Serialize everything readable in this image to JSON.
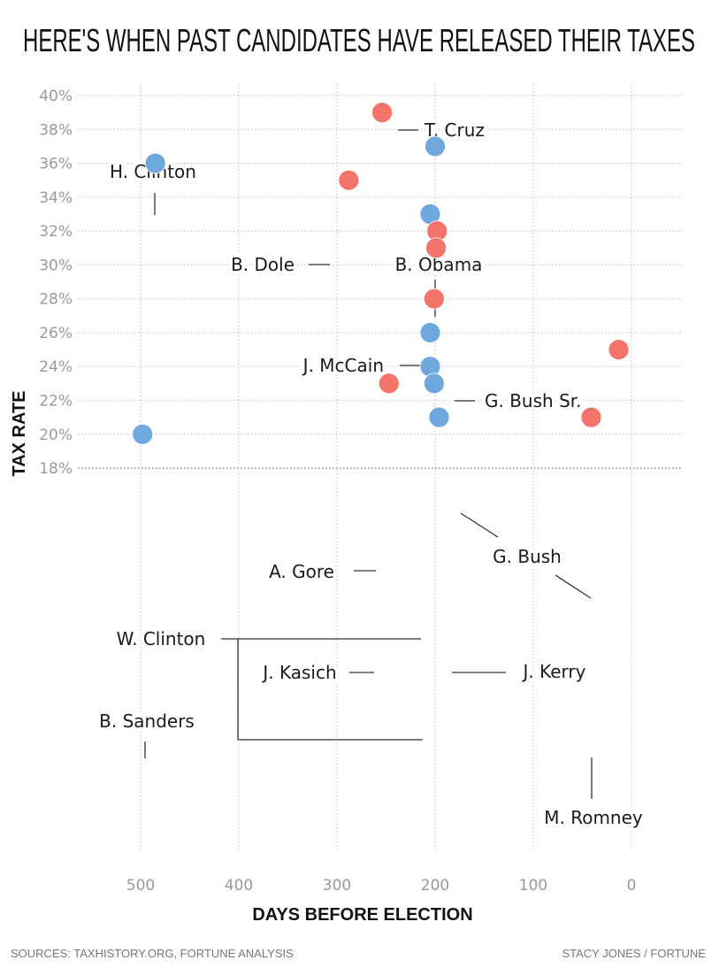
{
  "chart_data": {
    "type": "scatter",
    "title": "HERE'S WHEN PAST CANDIDATES HAVE RELEASED THEIR TAXES",
    "xlabel": "DAYS BEFORE ELECTION",
    "ylabel": "TAX RATE",
    "xlim": [
      568,
      -50
    ],
    "x_reversed": true,
    "ylim": [
      18,
      40
    ],
    "xticks": [
      500,
      400,
      300,
      200,
      100,
      0
    ],
    "xtick_labels": [
      "500",
      "400",
      "300",
      "200",
      "100",
      "0"
    ],
    "yticks": [
      40,
      38,
      36,
      34,
      32,
      30,
      28,
      26,
      24,
      22,
      20,
      18
    ],
    "ytick_labels": [
      "40%",
      "38%",
      "36%",
      "34%",
      "32%",
      "30%",
      "28%",
      "26%",
      "24%",
      "22%",
      "20%",
      "18%"
    ],
    "grid": true,
    "colors": {
      "blue": "#6fa8dc",
      "red": "#f4736a"
    },
    "points": [
      {
        "label": "T. Cruz",
        "x": 254,
        "y": 39,
        "color": "red"
      },
      {
        "label": "H. Clinton",
        "x": 485,
        "y": 36,
        "color": "blue"
      },
      {
        "label": "B. Obama",
        "x": 200,
        "y": 37,
        "color": "blue"
      },
      {
        "label": "B. Obama",
        "x": 205,
        "y": 33,
        "color": "blue"
      },
      {
        "label": "B. Dole",
        "x": 288,
        "y": 35,
        "color": "red"
      },
      {
        "label": "J. McCain",
        "x": 198,
        "y": 32,
        "color": "red"
      },
      {
        "label": "G. Bush Sr.",
        "x": 199,
        "y": 31,
        "color": "red"
      },
      {
        "label": "G. Bush",
        "x": 201,
        "y": 28,
        "color": "red"
      },
      {
        "label": "G. Bush",
        "x": 13,
        "y": 25,
        "color": "red"
      },
      {
        "label": "A. Gore",
        "x": 205,
        "y": 26,
        "color": "blue"
      },
      {
        "label": "W. Clinton",
        "x": 205,
        "y": 24,
        "color": "blue"
      },
      {
        "label": "W. Clinton",
        "x": 196,
        "y": 21,
        "color": "blue"
      },
      {
        "label": "J. Kasich",
        "x": 247,
        "y": 23,
        "color": "red"
      },
      {
        "label": "J. Kerry",
        "x": 201,
        "y": 23,
        "color": "blue"
      },
      {
        "label": "M. Romney",
        "x": 41,
        "y": 21,
        "color": "red"
      },
      {
        "label": "B. Sanders",
        "x": 498,
        "y": 20,
        "color": "blue"
      }
    ],
    "labels": [
      "H. Clinton",
      "T. Cruz",
      "B. Dole",
      "B. Obama",
      "J. McCain",
      "G. Bush Sr.",
      "G. Bush",
      "A. Gore",
      "W. Clinton",
      "J. Kasich",
      "J. Kerry",
      "B. Sanders",
      "M. Romney"
    ]
  },
  "footer": {
    "sources": "SOURCES: TAXHISTORY.ORG, FORTUNE ANALYSIS",
    "credit": "STACY JONES / FORTUNE"
  }
}
